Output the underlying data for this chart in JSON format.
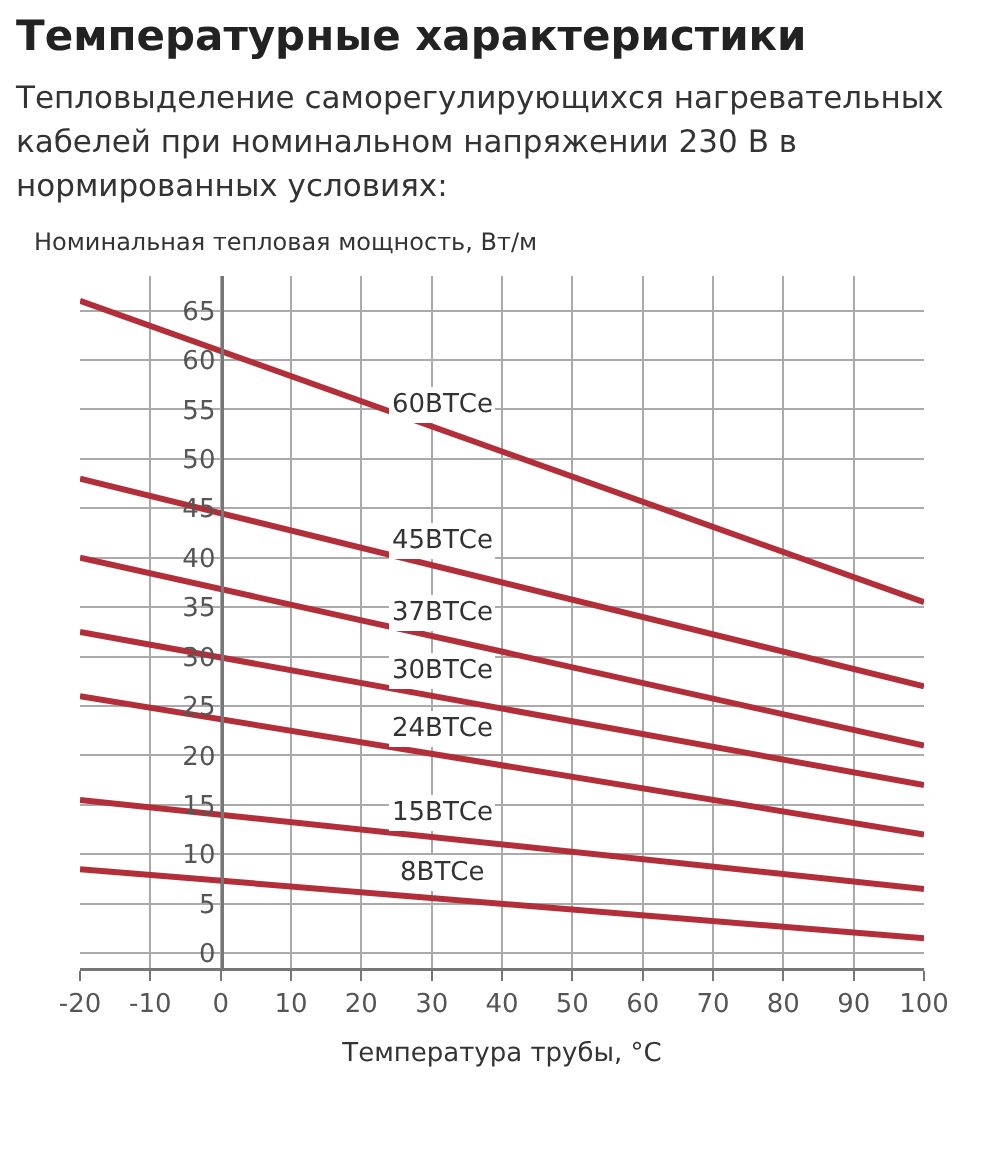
{
  "chart_data": {
    "type": "line",
    "title": "Температурные характеристики",
    "subtitle": "Тепловыделение саморегулирующихся нагревательных кабелей при номинальном напряжении 230 В в нормированных условиях:",
    "ylabel": "Номинальная тепловая мощность, Вт/м",
    "xlabel": "Температура трубы, °C",
    "x": [
      -20,
      100
    ],
    "series": [
      {
        "name": "60ВТСе",
        "color": "#b22f3a",
        "values": [
          66,
          35.5
        ]
      },
      {
        "name": "45ВТСе",
        "color": "#b22f3a",
        "values": [
          48,
          27
        ]
      },
      {
        "name": "37ВТСе",
        "color": "#b22f3a",
        "values": [
          40,
          21
        ]
      },
      {
        "name": "30ВТСе",
        "color": "#b22f3a",
        "values": [
          32.5,
          17
        ]
      },
      {
        "name": "24ВТСе",
        "color": "#b22f3a",
        "values": [
          26,
          12
        ]
      },
      {
        "name": "15ВТСе",
        "color": "#b22f3a",
        "values": [
          15.5,
          6.5
        ]
      },
      {
        "name": "8ВТСе",
        "color": "#b22f3a",
        "values": [
          8.5,
          1.5
        ]
      }
    ],
    "xlim": [
      -20,
      100
    ],
    "xticks": [
      -20,
      -10,
      0,
      10,
      20,
      30,
      40,
      50,
      60,
      70,
      80,
      90,
      100
    ],
    "ylim": [
      -1.5,
      68.5
    ],
    "yticks": [
      0,
      5,
      10,
      15,
      20,
      25,
      30,
      35,
      40,
      45,
      50,
      55,
      60,
      65
    ],
    "grid": true,
    "legend": false,
    "marker": "none",
    "line_style": "solid"
  }
}
